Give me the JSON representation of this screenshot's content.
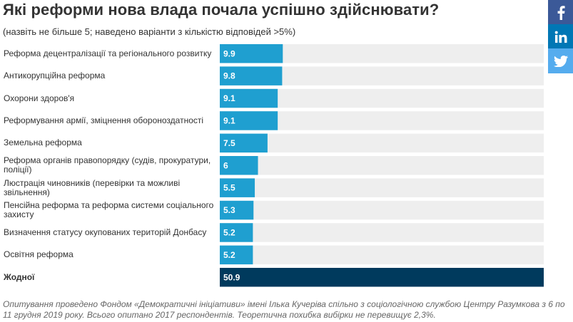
{
  "header": {
    "title": "Які реформи нова влада почала успішно здійснювати?",
    "subtitle": "(назвіть не більше 5; наведено варіанти з кількістю відповідей >5%)"
  },
  "social": {
    "icons": [
      "facebook-icon",
      "linkedin-icon",
      "twitter-icon"
    ],
    "colors": {
      "facebook": "#3b5998",
      "linkedin": "#0077b5",
      "twitter": "#55acee"
    }
  },
  "chart_data": {
    "type": "bar",
    "orientation": "horizontal",
    "categories": [
      "Реформа децентралізації та регіонального розвитку",
      "Антикорупційна реформа",
      "Охорони здоров'я",
      "Реформування армії, зміцнення обороноздатності",
      "Земельна реформа",
      "Реформа органів правопорядку (судів, прокуратури, поліції)",
      "Люстрація чиновників (перевірки та можливі звільнення)",
      "Пенсійна реформа та реформа системи соціального захисту",
      "Визначення статусу окупованих територій Донбасу",
      "Освітня реформа",
      "Жодної"
    ],
    "values": [
      9.9,
      9.8,
      9.1,
      9.1,
      7.5,
      6,
      5.5,
      5.3,
      5.2,
      5.2,
      50.9
    ],
    "value_labels": [
      "9.9",
      "9.8",
      "9.1",
      "9.1",
      "7.5",
      "6",
      "5.5",
      "5.3",
      "5.2",
      "5.2",
      "50.9"
    ],
    "highlight_index": 10,
    "xlim": [
      0,
      50.9
    ],
    "colors": {
      "bar": "#1f9fd0",
      "highlight": "#003a5d",
      "track": "#eeeeee"
    },
    "legend": "none"
  },
  "footnote": "Опитування проведено Фондом «Демократичні ініціативи» імені Ілька Кучеріва спільно з соціологічною службою Центру Разумкова з 6 по 11 грудня 2019 року. Всього опитано 2017 респондентів. Теоретична похибка вибірки не перевищує 2,3%."
}
